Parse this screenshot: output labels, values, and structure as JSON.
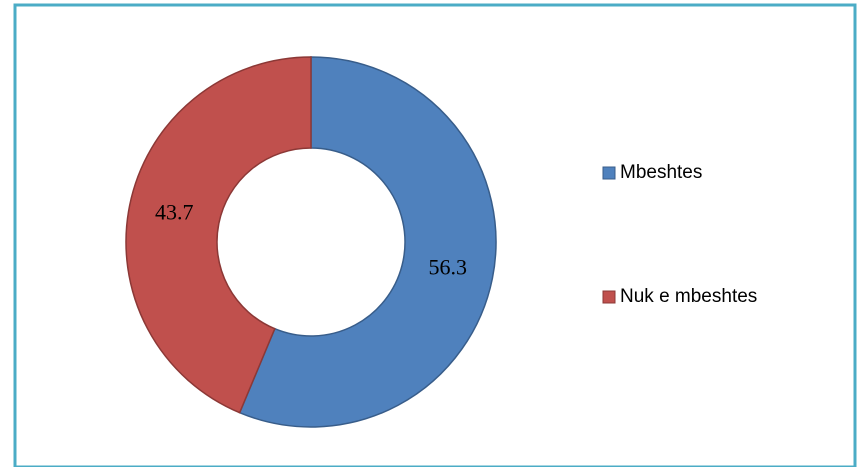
{
  "chart_data": {
    "type": "donut",
    "categories": [
      "Mbeshtes",
      "Nuk e mbeshtes"
    ],
    "values": [
      56.3,
      43.7
    ],
    "colors": [
      "#4f81bd",
      "#c0504d"
    ],
    "legend": "right"
  }
}
